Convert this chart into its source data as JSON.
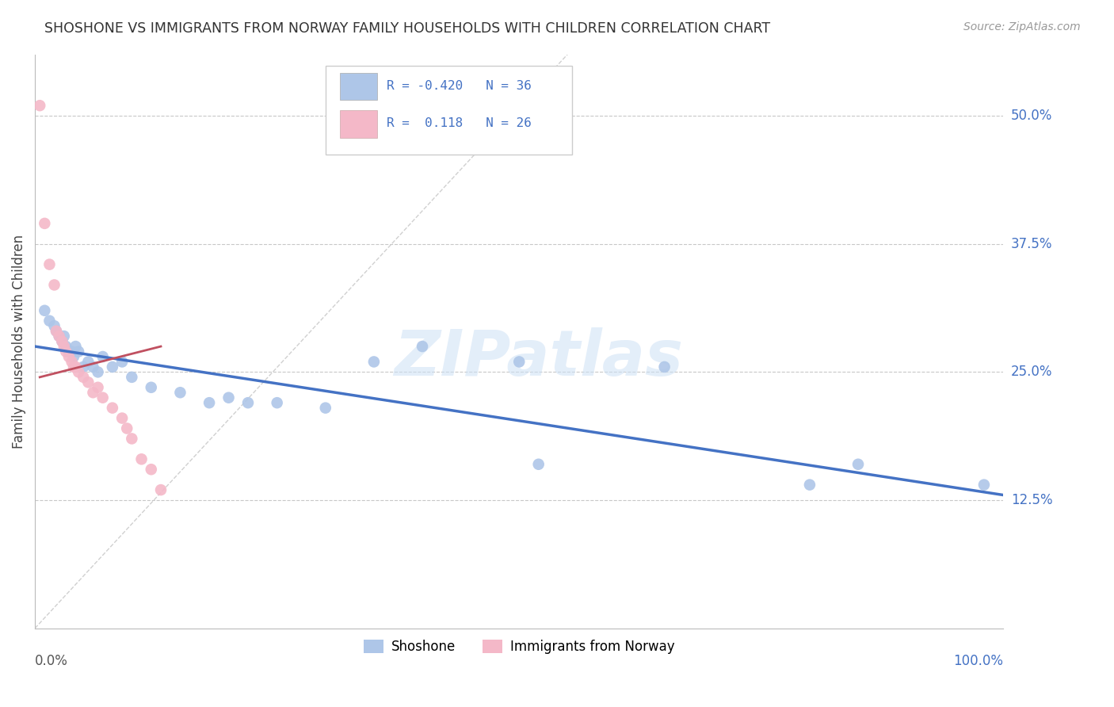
{
  "title": "SHOSHONE VS IMMIGRANTS FROM NORWAY FAMILY HOUSEHOLDS WITH CHILDREN CORRELATION CHART",
  "source": "Source: ZipAtlas.com",
  "ylabel": "Family Households with Children",
  "xlim": [
    0,
    100
  ],
  "ylim": [
    0,
    56
  ],
  "yticks": [
    12.5,
    25.0,
    37.5,
    50.0
  ],
  "ytick_labels": [
    "12.5%",
    "25.0%",
    "37.5%",
    "50.0%"
  ],
  "background_color": "#ffffff",
  "grid_color": "#c8c8c8",
  "watermark": "ZIPatlas",
  "blue_color": "#aec6e8",
  "pink_color": "#f4b8c8",
  "blue_line_color": "#4472c4",
  "pink_line_color": "#c05060",
  "diag_line_color": "#d0d0d0",
  "blue_scatter": [
    [
      1.0,
      31.0
    ],
    [
      1.5,
      30.0
    ],
    [
      2.0,
      29.5
    ],
    [
      2.2,
      29.0
    ],
    [
      2.5,
      28.5
    ],
    [
      2.8,
      28.0
    ],
    [
      3.0,
      28.5
    ],
    [
      3.2,
      27.5
    ],
    [
      3.5,
      27.0
    ],
    [
      3.8,
      27.0
    ],
    [
      4.0,
      26.5
    ],
    [
      4.2,
      27.5
    ],
    [
      4.5,
      27.0
    ],
    [
      5.0,
      25.5
    ],
    [
      5.5,
      26.0
    ],
    [
      6.0,
      25.5
    ],
    [
      6.5,
      25.0
    ],
    [
      7.0,
      26.5
    ],
    [
      8.0,
      25.5
    ],
    [
      9.0,
      26.0
    ],
    [
      10.0,
      24.5
    ],
    [
      12.0,
      23.5
    ],
    [
      15.0,
      23.0
    ],
    [
      18.0,
      22.0
    ],
    [
      20.0,
      22.5
    ],
    [
      22.0,
      22.0
    ],
    [
      25.0,
      22.0
    ],
    [
      30.0,
      21.5
    ],
    [
      35.0,
      26.0
    ],
    [
      40.0,
      27.5
    ],
    [
      50.0,
      26.0
    ],
    [
      52.0,
      16.0
    ],
    [
      65.0,
      25.5
    ],
    [
      80.0,
      14.0
    ],
    [
      85.0,
      16.0
    ],
    [
      98.0,
      14.0
    ]
  ],
  "pink_scatter": [
    [
      0.5,
      51.0
    ],
    [
      1.0,
      39.5
    ],
    [
      1.5,
      35.5
    ],
    [
      2.0,
      33.5
    ],
    [
      2.2,
      29.0
    ],
    [
      2.5,
      28.5
    ],
    [
      2.8,
      28.0
    ],
    [
      3.0,
      27.5
    ],
    [
      3.2,
      27.0
    ],
    [
      3.5,
      26.5
    ],
    [
      3.8,
      26.0
    ],
    [
      4.0,
      25.5
    ],
    [
      4.2,
      25.5
    ],
    [
      4.5,
      25.0
    ],
    [
      5.0,
      24.5
    ],
    [
      5.5,
      24.0
    ],
    [
      6.0,
      23.0
    ],
    [
      6.5,
      23.5
    ],
    [
      7.0,
      22.5
    ],
    [
      8.0,
      21.5
    ],
    [
      9.0,
      20.5
    ],
    [
      9.5,
      19.5
    ],
    [
      10.0,
      18.5
    ],
    [
      11.0,
      16.5
    ],
    [
      12.0,
      15.5
    ],
    [
      13.0,
      13.5
    ]
  ],
  "blue_line_x": [
    0,
    100
  ],
  "blue_line_y": [
    27.5,
    13.0
  ],
  "pink_line_x": [
    0.5,
    13.0
  ],
  "pink_line_y": [
    24.5,
    27.5
  ]
}
